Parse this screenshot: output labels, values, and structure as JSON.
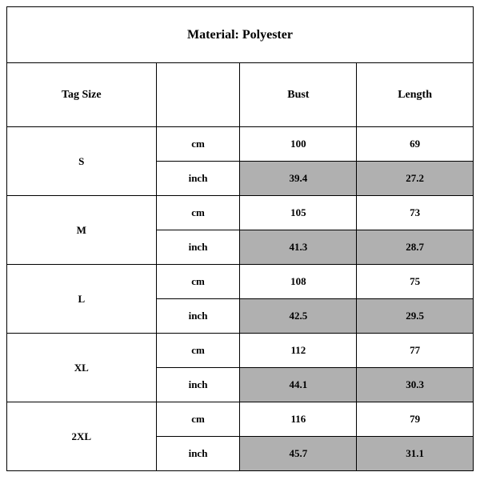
{
  "title": "Material: Polyester",
  "headers": {
    "tagSize": "Tag Size",
    "unitCol": "",
    "bust": "Bust",
    "length": "Length"
  },
  "units": {
    "cm": "cm",
    "inch": "inch"
  },
  "sizes": [
    {
      "label": "S",
      "cm": {
        "bust": "100",
        "length": "69"
      },
      "inch": {
        "bust": "39.4",
        "length": "27.2"
      }
    },
    {
      "label": "M",
      "cm": {
        "bust": "105",
        "length": "73"
      },
      "inch": {
        "bust": "41.3",
        "length": "28.7"
      }
    },
    {
      "label": "L",
      "cm": {
        "bust": "108",
        "length": "75"
      },
      "inch": {
        "bust": "42.5",
        "length": "29.5"
      }
    },
    {
      "label": "XL",
      "cm": {
        "bust": "112",
        "length": "77"
      },
      "inch": {
        "bust": "44.1",
        "length": "30.3"
      }
    },
    {
      "label": "2XL",
      "cm": {
        "bust": "116",
        "length": "79"
      },
      "inch": {
        "bust": "45.7",
        "length": "31.1"
      }
    }
  ],
  "style": {
    "shaded_bg": "#b0b0b0",
    "border_color": "#000000",
    "background_color": "#ffffff",
    "font_family": "Times New Roman",
    "title_fontsize": 16,
    "header_fontsize": 14,
    "cell_fontsize": 13
  }
}
